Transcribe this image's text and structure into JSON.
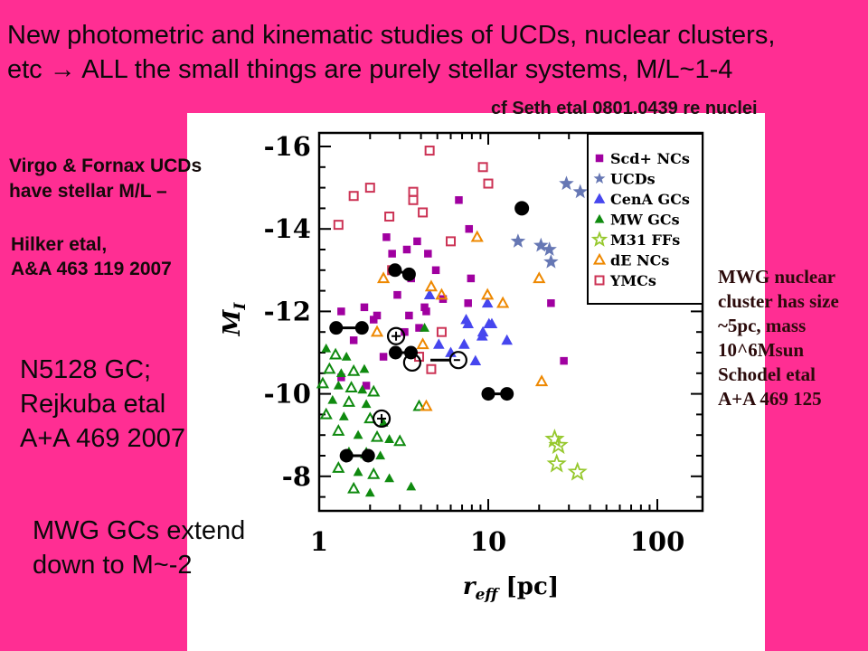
{
  "slide": {
    "background_color": "#ff2e93",
    "panel_color": "#ffffff",
    "title": {
      "line1": "New photometric and kinematic studies of UCDs, nuclear clusters,",
      "line2": "etc → ALL the small things are purely stellar systems,  M/L~1-4"
    },
    "annotations": {
      "cf_seth": "cf Seth etal 0801.0439 re nuclei",
      "virgo": [
        "Virgo & Fornax UCDs",
        "have stellar M/L –"
      ],
      "hilker": [
        " Hilker etal,",
        "A&A 463 119 2007"
      ],
      "n5128": [
        "N5128 GC;",
        "Rejkuba etal",
        "A+A 469 2007"
      ],
      "mwg_gcs": [
        "MWG GCs extend",
        "down to M~-2"
      ],
      "mwg_nuclear": [
        "MWG nuclear",
        "cluster has size",
        "~5pc, mass",
        "10^6Msun",
        "Schodel etal",
        "A+A 469 125"
      ]
    }
  },
  "chart_data": {
    "type": "scatter",
    "x_axis": {
      "scale": "log",
      "range": [
        1,
        185
      ],
      "label_main": "r",
      "label_sub": "eff",
      "label_unit": " [pc]",
      "ticks": [
        {
          "value": 1,
          "label": "1"
        },
        {
          "value": 10,
          "label": "10"
        },
        {
          "value": 100,
          "label": "100"
        }
      ]
    },
    "y_axis": {
      "range": [
        -16.3,
        -7.2
      ],
      "direction": "brighter-up",
      "label_main": "M",
      "label_sub": "I",
      "ticks": [
        {
          "value": -16,
          "label": "-16"
        },
        {
          "value": -14,
          "label": "-14"
        },
        {
          "value": -12,
          "label": "-12"
        },
        {
          "value": -10,
          "label": "-10"
        },
        {
          "value": -8,
          "label": "-8"
        }
      ]
    },
    "legend_position": "top-right",
    "series": [
      {
        "name": "Scd+ NCs",
        "marker": "square-filled",
        "color": "#a000a0",
        "size": 8.5,
        "points": [
          [
            6.7,
            -14.7
          ],
          [
            7.7,
            -14.0
          ],
          [
            2.5,
            -13.8
          ],
          [
            3.8,
            -13.7
          ],
          [
            3.3,
            -13.5
          ],
          [
            2.7,
            -13.4
          ],
          [
            4.4,
            -13.4
          ],
          [
            4.9,
            -13.0
          ],
          [
            3.5,
            -12.8
          ],
          [
            7.9,
            -12.8
          ],
          [
            2.9,
            -12.4
          ],
          [
            7.6,
            -12.2
          ],
          [
            4.2,
            -12.1
          ],
          [
            3.4,
            -11.9
          ],
          [
            23.5,
            -12.2
          ],
          [
            28,
            -10.8
          ],
          [
            1.35,
            -12.0
          ],
          [
            1.85,
            -12.1
          ],
          [
            2.2,
            -11.9
          ],
          [
            4.3,
            -12.0
          ],
          [
            3.9,
            -11.6
          ],
          [
            3.2,
            -11.5
          ],
          [
            1.35,
            -10.4
          ],
          [
            1.9,
            -10.2
          ],
          [
            2.1,
            -11.8
          ],
          [
            5.4,
            -12.3
          ],
          [
            1.6,
            -11.3
          ],
          [
            2.4,
            -10.9
          ]
        ]
      },
      {
        "name": "UCDs",
        "marker": "star-filled",
        "color": "#6677b4",
        "size": 14,
        "points": [
          [
            29,
            -15.1
          ],
          [
            35,
            -14.9
          ],
          [
            15,
            -13.7
          ],
          [
            20.5,
            -13.6
          ],
          [
            23,
            -13.5
          ],
          [
            23.5,
            -13.2
          ]
        ]
      },
      {
        "name": "CenA GCs",
        "marker": "triangle-filled",
        "color": "#4646ee",
        "size": 10.5,
        "points": [
          [
            4.5,
            -12.4
          ],
          [
            9.9,
            -12.2
          ],
          [
            7.6,
            -11.7
          ],
          [
            10.1,
            -11.7
          ],
          [
            9.3,
            -11.5
          ],
          [
            7.4,
            -11.8
          ],
          [
            10.5,
            -11.7
          ],
          [
            9.2,
            -11.4
          ],
          [
            5.1,
            -11.2
          ],
          [
            7.2,
            -11.2
          ],
          [
            8.4,
            -10.8
          ],
          [
            6.0,
            -11.0
          ],
          [
            12.9,
            -11.3
          ]
        ]
      },
      {
        "name": "MW GCs",
        "marker": "triangle-filled",
        "marker_open_variant": "triangle-open",
        "color": "#0f8a0f",
        "size": 9,
        "points": [
          [
            1.1,
            -11.1
          ],
          [
            1.25,
            -10.95,
            1
          ],
          [
            1.45,
            -10.9
          ],
          [
            1.15,
            -10.6,
            1
          ],
          [
            1.35,
            -10.5
          ],
          [
            1.6,
            -10.55,
            1
          ],
          [
            1.85,
            -10.6
          ],
          [
            1.05,
            -10.25,
            1
          ],
          [
            1.3,
            -10.2
          ],
          [
            1.55,
            -10.15,
            1
          ],
          [
            1.8,
            -10.1
          ],
          [
            2.1,
            -10.05,
            1
          ],
          [
            1.2,
            -9.85
          ],
          [
            1.5,
            -9.8,
            1
          ],
          [
            1.9,
            -9.75
          ],
          [
            1.1,
            -9.5,
            1
          ],
          [
            1.4,
            -9.45
          ],
          [
            2.0,
            -9.4,
            1
          ],
          [
            2.4,
            -9.3
          ],
          [
            1.3,
            -9.1,
            1
          ],
          [
            1.7,
            -9.0
          ],
          [
            2.2,
            -8.95,
            1
          ],
          [
            2.6,
            -8.9
          ],
          [
            3.0,
            -8.85,
            1
          ],
          [
            1.5,
            -8.6
          ],
          [
            1.9,
            -8.55,
            1
          ],
          [
            2.3,
            -8.5
          ],
          [
            1.3,
            -8.2,
            1
          ],
          [
            1.7,
            -8.1
          ],
          [
            2.1,
            -8.05,
            1
          ],
          [
            2.6,
            -7.95
          ],
          [
            1.6,
            -7.7,
            1
          ],
          [
            2.0,
            -7.6
          ],
          [
            4.2,
            -11.6
          ],
          [
            3.9,
            -9.7,
            1
          ],
          [
            3.5,
            -7.75
          ]
        ]
      },
      {
        "name": "M31 FFs",
        "marker": "star-open",
        "color": "#96c82d",
        "size": 14,
        "points": [
          [
            24.7,
            -8.9
          ],
          [
            26,
            -8.75
          ],
          [
            25.4,
            -8.3
          ],
          [
            33.7,
            -8.1
          ]
        ]
      },
      {
        "name": "dE NCs",
        "marker": "triangle-open",
        "color": "#ee8800",
        "size": 9,
        "points": [
          [
            8.6,
            -13.8
          ],
          [
            2.4,
            -12.8
          ],
          [
            4.6,
            -12.6
          ],
          [
            5.3,
            -12.4
          ],
          [
            20,
            -12.8
          ],
          [
            9.9,
            -12.4
          ],
          [
            12.2,
            -12.2
          ],
          [
            20.7,
            -10.3
          ],
          [
            2.2,
            -11.5
          ],
          [
            4.1,
            -11.2
          ],
          [
            4.3,
            -9.7
          ]
        ]
      },
      {
        "name": "YMCs",
        "marker": "square-open",
        "color": "#cc3355",
        "size": 9,
        "points": [
          [
            1.3,
            -14.1
          ],
          [
            1.6,
            -14.8
          ],
          [
            2.0,
            -15.0
          ],
          [
            2.6,
            -14.3
          ],
          [
            3.6,
            -14.9
          ],
          [
            3.6,
            -14.7
          ],
          [
            4.1,
            -14.4
          ],
          [
            4.5,
            -15.9
          ],
          [
            6.0,
            -13.7
          ],
          [
            9.3,
            -15.5
          ],
          [
            10,
            -15.1
          ],
          [
            2.7,
            -13.0
          ],
          [
            5.3,
            -11.5
          ],
          [
            3.9,
            -10.9
          ],
          [
            4.6,
            -10.6
          ]
        ]
      }
    ],
    "black_clusters": {
      "name": "N5128 GCs (black symbols)",
      "singles": [
        [
          15.8,
          -14.5
        ]
      ],
      "pairs": [
        [
          [
            1.26,
            -11.6
          ],
          [
            1.79,
            -11.6
          ]
        ],
        [
          [
            2.81,
            -13.0
          ],
          [
            3.4,
            -12.9
          ]
        ],
        [
          [
            2.83,
            -11.0
          ],
          [
            3.49,
            -11.0
          ]
        ],
        [
          [
            10.0,
            -10.0
          ],
          [
            12.9,
            -10.0
          ]
        ],
        [
          [
            1.45,
            -8.5
          ],
          [
            1.95,
            -8.5
          ]
        ]
      ],
      "open_plus": [
        [
          2.85,
          -11.4
        ],
        [
          2.34,
          -9.4
        ]
      ],
      "open_circle": [
        [
          3.55,
          -10.76
        ]
      ],
      "open_dash": [
        [
          6.65,
          -10.82
        ]
      ],
      "dash_segment": [
        [
          4.55,
          -10.82
        ],
        [
          5.9,
          -10.82
        ]
      ]
    }
  }
}
